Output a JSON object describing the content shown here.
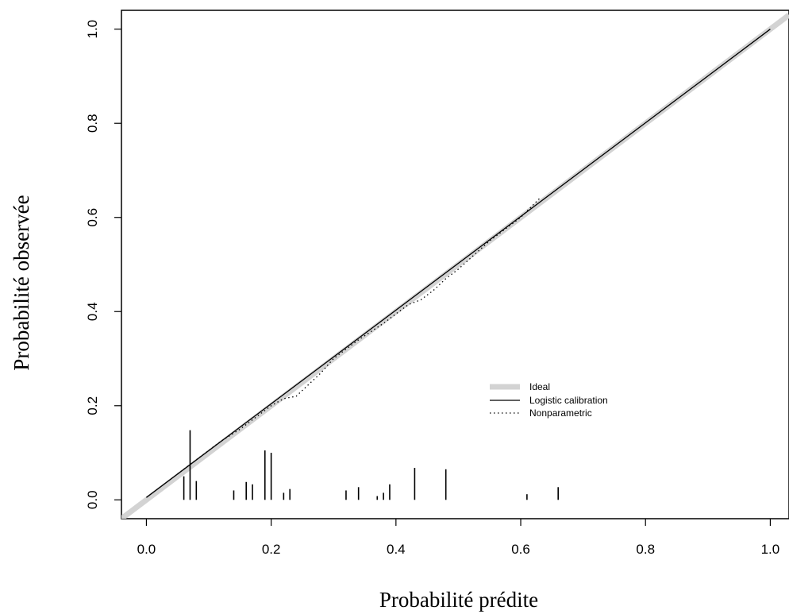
{
  "chart_data": {
    "type": "line",
    "xlabel": "Probabilité prédite",
    "ylabel": "Probabilité observée",
    "xlim": [
      -0.04,
      1.03
    ],
    "ylim": [
      -0.04,
      1.04
    ],
    "x_ticks": [
      0.0,
      0.2,
      0.4,
      0.6,
      0.8,
      1.0
    ],
    "x_tick_labels": [
      "0.0",
      "0.2",
      "0.4",
      "0.6",
      "0.8",
      "1.0"
    ],
    "y_ticks": [
      0.0,
      0.2,
      0.4,
      0.6,
      0.8,
      1.0
    ],
    "y_tick_labels": [
      "0.0",
      "0.2",
      "0.4",
      "0.6",
      "0.8",
      "1.0"
    ],
    "grid": false,
    "legend_position": "right-middle",
    "series": [
      {
        "name": "Ideal",
        "style": "thick-gray",
        "color": "#d3d3d3",
        "x": [
          -0.04,
          1.03
        ],
        "y": [
          -0.04,
          1.03
        ]
      },
      {
        "name": "Logistic calibration",
        "style": "solid",
        "color": "#000000",
        "x": [
          0.0,
          1.0
        ],
        "y": [
          0.005,
          1.0
        ]
      },
      {
        "name": "Nonparametric",
        "style": "dotted",
        "color": "#000000",
        "x": [
          0.05,
          0.08,
          0.12,
          0.15,
          0.18,
          0.2,
          0.22,
          0.24,
          0.26,
          0.28,
          0.3,
          0.34,
          0.38,
          0.4,
          0.42,
          0.44,
          0.46,
          0.48,
          0.5,
          0.55,
          0.6,
          0.63
        ],
        "y": [
          0.055,
          0.085,
          0.125,
          0.15,
          0.18,
          0.2,
          0.215,
          0.22,
          0.245,
          0.27,
          0.3,
          0.34,
          0.375,
          0.395,
          0.415,
          0.425,
          0.445,
          0.47,
          0.49,
          0.55,
          0.6,
          0.64
        ]
      }
    ],
    "rug": {
      "x": [
        0.06,
        0.07,
        0.08,
        0.14,
        0.16,
        0.17,
        0.19,
        0.2,
        0.22,
        0.23,
        0.32,
        0.34,
        0.37,
        0.38,
        0.39,
        0.43,
        0.48,
        0.61,
        0.66
      ],
      "height": [
        0.05,
        0.148,
        0.04,
        0.02,
        0.038,
        0.033,
        0.105,
        0.1,
        0.015,
        0.023,
        0.02,
        0.027,
        0.008,
        0.015,
        0.033,
        0.068,
        0.065,
        0.012,
        0.027
      ]
    }
  }
}
